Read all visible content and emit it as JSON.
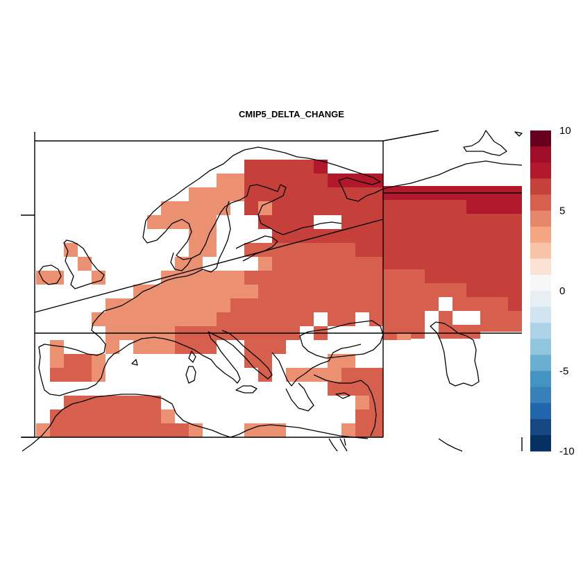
{
  "title": "CMIP5_DELTA_CHANGE",
  "colorbar": {
    "ticks": [
      {
        "value": 10,
        "label": "10"
      },
      {
        "value": 5,
        "label": "5"
      },
      {
        "value": 0,
        "label": "0"
      },
      {
        "value": -5,
        "label": "-5"
      },
      {
        "value": -10,
        "label": "-10"
      }
    ],
    "range": [
      -10,
      10
    ],
    "colors": [
      "#67001f",
      "#9f0e26",
      "#b2182b",
      "#c5413c",
      "#d6604d",
      "#e5856a",
      "#f4a582",
      "#f8c4a9",
      "#fbe3d4",
      "#f7f7f7",
      "#e6eff4",
      "#d1e5f0",
      "#abd2e6",
      "#92c5de",
      "#6aaed3",
      "#4393c3",
      "#3a80b8",
      "#2166ac",
      "#164983",
      "#053061"
    ]
  },
  "fill_colors": {
    "light": "#eb9172",
    "medium": "#d6604d",
    "dark": "#c5403b",
    "darker": "#b2182b"
  }
}
